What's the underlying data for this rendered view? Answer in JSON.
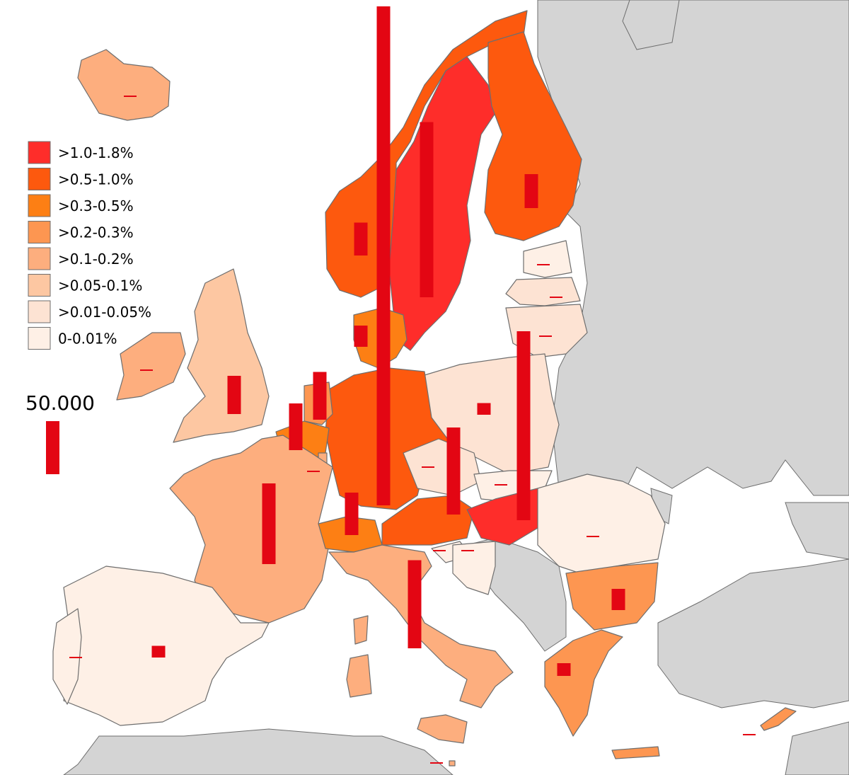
{
  "colors": {
    "sea": "#ffffff",
    "non_eu": "#d4d4d4",
    "border": "#6e6e6e",
    "bar": "#e30613",
    "classes": [
      "#fe2d2a",
      "#fd590e",
      "#fd7f14",
      "#fd9651",
      "#fdae7e",
      "#fdc7a2",
      "#fde3d3",
      "#fef0e6"
    ]
  },
  "legend": {
    "items": [
      {
        "label": ">1.0-1.8%",
        "color": "#fe2d2a"
      },
      {
        "label": ">0.5-1.0%",
        "color": "#fd590e"
      },
      {
        "label": ">0.3-0.5%",
        "color": "#fd7f14"
      },
      {
        "label": ">0.2-0.3%",
        "color": "#fd9651"
      },
      {
        "label": ">0.1-0.2%",
        "color": "#fdae7e"
      },
      {
        "label": ">0.05-0.1%",
        "color": "#fdc7a2"
      },
      {
        "label": ">0.01-0.05%",
        "color": "#fde3d3"
      },
      {
        "label": "0-0.01%",
        "color": "#fef0e6"
      }
    ]
  },
  "scale": {
    "label": "50.000",
    "value": 50000
  },
  "chart_data": {
    "type": "choropleth-with-bars",
    "bar_unit_value": 50000,
    "regions": [
      {
        "id": "sweden",
        "class": ">1.0-1.8%",
        "bar_value": 165000
      },
      {
        "id": "finland",
        "class": ">0.5-1.0%",
        "bar_value": 32000
      },
      {
        "id": "norway",
        "class": ">0.5-1.0%",
        "bar_value": 31000
      },
      {
        "id": "denmark",
        "class": ">0.3-0.5%",
        "bar_value": 20000
      },
      {
        "id": "germany",
        "class": ">0.5-1.0%",
        "bar_value": 470000
      },
      {
        "id": "netherlands",
        "class": ">0.2-0.3%",
        "bar_value": 45000
      },
      {
        "id": "belgium",
        "class": ">0.3-0.5%",
        "bar_value": 44000
      },
      {
        "id": "luxembourg",
        "class": ">0.1-0.2%",
        "bar_value": 1000
      },
      {
        "id": "uk",
        "class": ">0.05-0.1%",
        "bar_value": 36000
      },
      {
        "id": "ireland",
        "class": ">0.1-0.2%",
        "bar_value": 1000
      },
      {
        "id": "france",
        "class": ">0.1-0.2%",
        "bar_value": 76000
      },
      {
        "id": "spain",
        "class": "0-0.01%",
        "bar_value": 11000
      },
      {
        "id": "portugal",
        "class": "0-0.01%",
        "bar_value": 500
      },
      {
        "id": "italy",
        "class": ">0.1-0.2%",
        "bar_value": 83000
      },
      {
        "id": "switzerland",
        "class": ">0.3-0.5%",
        "bar_value": 40000
      },
      {
        "id": "austria",
        "class": ">0.5-1.0%",
        "bar_value": 82000
      },
      {
        "id": "czechia",
        "class": ">0.01-0.05%",
        "bar_value": 1000
      },
      {
        "id": "slovakia",
        "class": "0-0.01%",
        "bar_value": 500
      },
      {
        "id": "hungary",
        "class": ">1.0-1.8%",
        "bar_value": 178000
      },
      {
        "id": "poland",
        "class": ">0.01-0.05%",
        "bar_value": 11000
      },
      {
        "id": "lithuania",
        "class": ">0.01-0.05%",
        "bar_value": 500
      },
      {
        "id": "latvia",
        "class": ">0.01-0.05%",
        "bar_value": 500
      },
      {
        "id": "estonia",
        "class": "0-0.01%",
        "bar_value": 500
      },
      {
        "id": "romania",
        "class": "0-0.01%",
        "bar_value": 1000
      },
      {
        "id": "bulgaria",
        "class": ">0.2-0.3%",
        "bar_value": 20000
      },
      {
        "id": "greece",
        "class": ">0.2-0.3%",
        "bar_value": 12000
      },
      {
        "id": "slovenia",
        "class": "0-0.01%",
        "bar_value": 500
      },
      {
        "id": "croatia",
        "class": "0-0.01%",
        "bar_value": 500
      },
      {
        "id": "iceland",
        "class": ">0.1-0.2%",
        "bar_value": 500
      },
      {
        "id": "cyprus",
        "class": ">0.2-0.3%",
        "bar_value": 1000
      },
      {
        "id": "malta",
        "class": ">0.1-0.2%",
        "bar_value": 1000
      }
    ]
  }
}
